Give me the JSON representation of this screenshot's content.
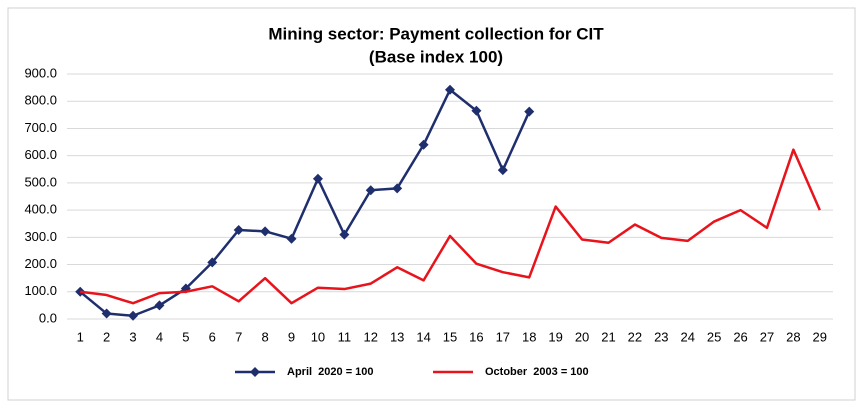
{
  "chart_data": {
    "type": "line",
    "title": "Mining sector: Payment collection for CIT",
    "subtitle": "(Base index 100)",
    "categories": [
      "1",
      "2",
      "3",
      "4",
      "5",
      "6",
      "7",
      "8",
      "9",
      "10",
      "11",
      "12",
      "13",
      "14",
      "15",
      "16",
      "17",
      "18",
      "19",
      "20",
      "21",
      "22",
      "23",
      "24",
      "25",
      "26",
      "27",
      "28",
      "29"
    ],
    "series": [
      {
        "name": "April  2020 = 100",
        "color": "#1f2f6e",
        "marker": "diamond",
        "values": [
          100,
          20,
          12,
          50,
          112,
          208,
          327,
          322,
          295,
          515,
          310,
          473,
          480,
          640,
          842,
          765,
          547,
          762,
          null,
          null,
          null,
          null,
          null,
          null,
          null,
          null,
          null,
          null,
          null
        ]
      },
      {
        "name": "October  2003 = 100",
        "color": "#e8131b",
        "marker": "none",
        "values": [
          100,
          88,
          58,
          95,
          100,
          120,
          65,
          150,
          58,
          115,
          110,
          130,
          190,
          142,
          305,
          203,
          172,
          153,
          413,
          292,
          280,
          347,
          298,
          287,
          358,
          400,
          335,
          622,
          400
        ]
      }
    ],
    "ylim": [
      0,
      900
    ],
    "yticks": [
      {
        "value": 0,
        "label": "0.0"
      },
      {
        "value": 100,
        "label": "100.0"
      },
      {
        "value": 200,
        "label": "200.0"
      },
      {
        "value": 300,
        "label": "300.0"
      },
      {
        "value": 400,
        "label": "400.0"
      },
      {
        "value": 500,
        "label": "500.0"
      },
      {
        "value": 600,
        "label": "600.0"
      },
      {
        "value": 700,
        "label": "700.0"
      },
      {
        "value": 800,
        "label": "800.0"
      },
      {
        "value": 900,
        "label": "900.0"
      }
    ],
    "grid": true,
    "legend": "bottom"
  }
}
